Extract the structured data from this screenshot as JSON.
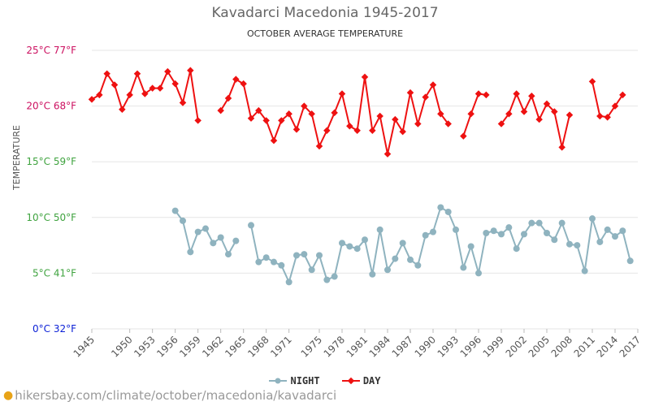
{
  "chart_data": {
    "type": "line",
    "title": "Kavadarci Macedonia 1945-2017",
    "subtitle": "OCTOBER AVERAGE TEMPERATURE",
    "ylabel": "TEMPERATURE",
    "ylim": [
      0,
      25
    ],
    "y_ticks": [
      {
        "value": 0,
        "label": "0°C 32°F",
        "color": "#0a1fd6"
      },
      {
        "value": 5,
        "label": "5°C 41°F",
        "color": "#3fa33f"
      },
      {
        "value": 10,
        "label": "10°C 50°F",
        "color": "#3fa33f"
      },
      {
        "value": 15,
        "label": "15°C 59°F",
        "color": "#3fa33f"
      },
      {
        "value": 20,
        "label": "20°C 68°F",
        "color": "#cc1060"
      },
      {
        "value": 25,
        "label": "25°C 77°F",
        "color": "#cc1060"
      }
    ],
    "x_ticks": [
      1945,
      1950,
      1953,
      1956,
      1959,
      1962,
      1965,
      1968,
      1971,
      1975,
      1978,
      1981,
      1984,
      1987,
      1990,
      1993,
      1996,
      1999,
      2002,
      2005,
      2008,
      2011,
      2014,
      2017
    ],
    "grid": true,
    "legend_position": "bottom",
    "series": [
      {
        "name": "NIGHT",
        "color": "#8fb3bf",
        "points": [
          [
            1956,
            10.6
          ],
          [
            1957,
            9.7
          ],
          [
            1958,
            6.9
          ],
          [
            1959,
            8.7
          ],
          [
            1960,
            9.0
          ],
          [
            1961,
            7.7
          ],
          [
            1962,
            8.2
          ],
          [
            1963,
            6.7
          ],
          [
            1964,
            7.9
          ],
          [
            1966,
            9.3
          ],
          [
            1967,
            6.0
          ],
          [
            1968,
            6.4
          ],
          [
            1969,
            6.0
          ],
          [
            1970,
            5.7
          ],
          [
            1971,
            4.2
          ],
          [
            1972,
            6.6
          ],
          [
            1973,
            6.7
          ],
          [
            1974,
            5.3
          ],
          [
            1975,
            6.6
          ],
          [
            1976,
            4.4
          ],
          [
            1977,
            4.7
          ],
          [
            1978,
            7.7
          ],
          [
            1979,
            7.4
          ],
          [
            1980,
            7.2
          ],
          [
            1981,
            8.0
          ],
          [
            1982,
            4.9
          ],
          [
            1983,
            8.9
          ],
          [
            1984,
            5.3
          ],
          [
            1985,
            6.3
          ],
          [
            1986,
            7.7
          ],
          [
            1987,
            6.2
          ],
          [
            1988,
            5.7
          ],
          [
            1989,
            8.4
          ],
          [
            1990,
            8.7
          ],
          [
            1991,
            10.9
          ],
          [
            1992,
            10.5
          ],
          [
            1993,
            8.9
          ],
          [
            1994,
            5.5
          ],
          [
            1995,
            7.4
          ],
          [
            1996,
            5.0
          ],
          [
            1997,
            8.6
          ],
          [
            1998,
            8.8
          ],
          [
            1999,
            8.5
          ],
          [
            2000,
            9.1
          ],
          [
            2001,
            7.2
          ],
          [
            2002,
            8.5
          ],
          [
            2003,
            9.5
          ],
          [
            2004,
            9.5
          ],
          [
            2005,
            8.6
          ],
          [
            2006,
            8.0
          ],
          [
            2007,
            9.5
          ],
          [
            2008,
            7.6
          ],
          [
            2009,
            7.5
          ],
          [
            2010,
            5.2
          ],
          [
            2011,
            9.9
          ],
          [
            2012,
            7.8
          ],
          [
            2013,
            8.9
          ],
          [
            2014,
            8.3
          ],
          [
            2015,
            8.8
          ],
          [
            2016,
            6.1
          ]
        ]
      },
      {
        "name": "DAY",
        "color": "#ee1111",
        "points": [
          [
            1945,
            20.6
          ],
          [
            1946,
            21.0
          ],
          [
            1947,
            22.9
          ],
          [
            1948,
            21.9
          ],
          [
            1949,
            19.7
          ],
          [
            1950,
            21.0
          ],
          [
            1951,
            22.9
          ],
          [
            1952,
            21.1
          ],
          [
            1953,
            21.6
          ],
          [
            1954,
            21.6
          ],
          [
            1955,
            23.1
          ],
          [
            1956,
            22.0
          ],
          [
            1957,
            20.3
          ],
          [
            1958,
            23.2
          ],
          [
            1959,
            18.7
          ],
          [
            1962,
            19.6
          ],
          [
            1963,
            20.7
          ],
          [
            1964,
            22.4
          ],
          [
            1965,
            22.0
          ],
          [
            1966,
            18.9
          ],
          [
            1967,
            19.6
          ],
          [
            1968,
            18.7
          ],
          [
            1969,
            16.9
          ],
          [
            1970,
            18.7
          ],
          [
            1971,
            19.3
          ],
          [
            1972,
            17.9
          ],
          [
            1973,
            20.0
          ],
          [
            1974,
            19.3
          ],
          [
            1975,
            16.4
          ],
          [
            1976,
            17.8
          ],
          [
            1977,
            19.4
          ],
          [
            1978,
            21.1
          ],
          [
            1979,
            18.2
          ],
          [
            1980,
            17.8
          ],
          [
            1981,
            22.6
          ],
          [
            1982,
            17.8
          ],
          [
            1983,
            19.1
          ],
          [
            1984,
            15.7
          ],
          [
            1985,
            18.8
          ],
          [
            1986,
            17.7
          ],
          [
            1987,
            21.2
          ],
          [
            1988,
            18.4
          ],
          [
            1989,
            20.8
          ],
          [
            1990,
            21.9
          ],
          [
            1991,
            19.3
          ],
          [
            1992,
            18.4
          ],
          [
            1994,
            17.3
          ],
          [
            1995,
            19.3
          ],
          [
            1996,
            21.1
          ],
          [
            1997,
            21.0
          ],
          [
            1999,
            18.4
          ],
          [
            2000,
            19.3
          ],
          [
            2001,
            21.1
          ],
          [
            2002,
            19.5
          ],
          [
            2003,
            20.9
          ],
          [
            2004,
            18.8
          ],
          [
            2005,
            20.2
          ],
          [
            2006,
            19.5
          ],
          [
            2007,
            16.3
          ],
          [
            2008,
            19.2
          ],
          [
            2011,
            22.2
          ],
          [
            2012,
            19.1
          ],
          [
            2013,
            19.0
          ],
          [
            2014,
            20.0
          ],
          [
            2015,
            21.0
          ]
        ]
      }
    ]
  },
  "footer": {
    "pin_icon": "location-pin-icon",
    "url": "hikersbay.com/climate/october/macedonia/kavadarci"
  }
}
